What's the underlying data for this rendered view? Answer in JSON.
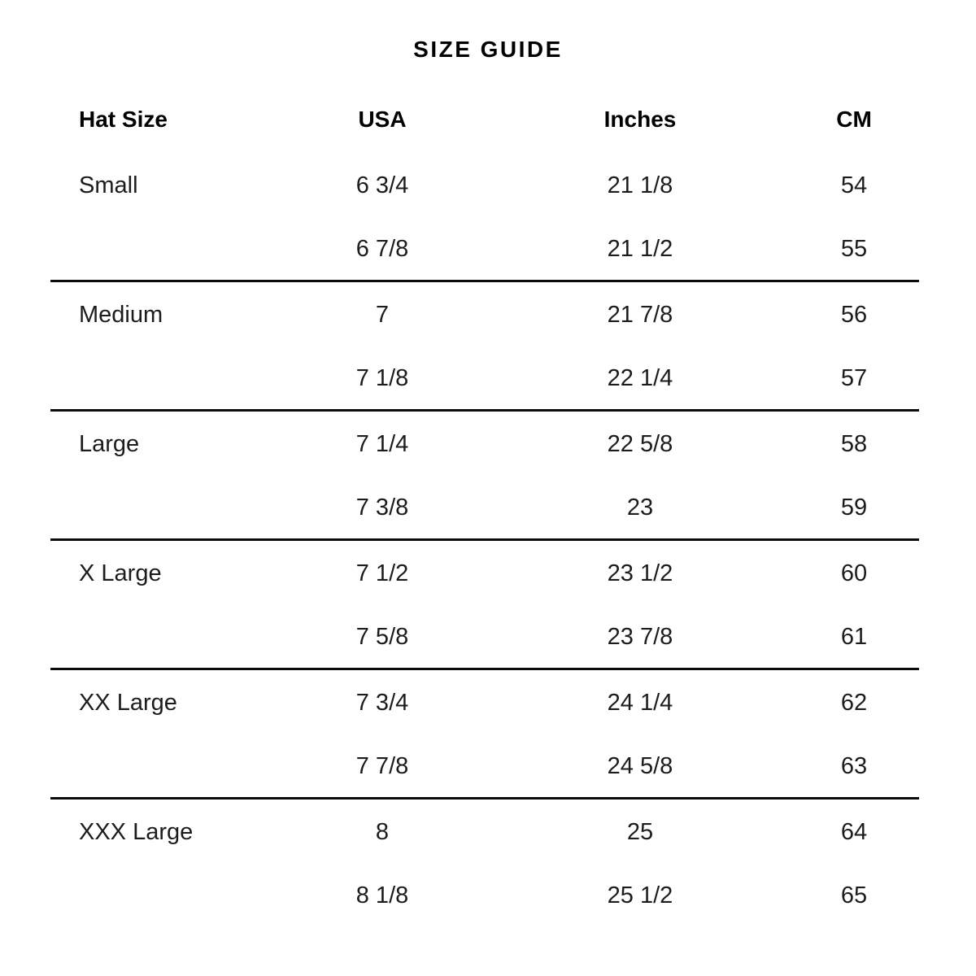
{
  "page": {
    "title": "SIZE GUIDE"
  },
  "colors": {
    "background": "#ffffff",
    "text": "#1c1c1c",
    "header_text": "#000000",
    "divider": "#0c0c0c"
  },
  "table": {
    "columns": [
      "Hat Size",
      "USA",
      "Inches",
      "CM"
    ],
    "groups": [
      {
        "rows": [
          {
            "hat_size": "Small",
            "usa": "6 3/4",
            "inches": "21 1/8",
            "cm": "54"
          },
          {
            "hat_size": "",
            "usa": "6 7/8",
            "inches": "21 1/2",
            "cm": "55"
          }
        ]
      },
      {
        "rows": [
          {
            "hat_size": "Medium",
            "usa": "7",
            "inches": "21 7/8",
            "cm": "56"
          },
          {
            "hat_size": "",
            "usa": "7 1/8",
            "inches": "22 1/4",
            "cm": "57"
          }
        ]
      },
      {
        "rows": [
          {
            "hat_size": "Large",
            "usa": "7 1/4",
            "inches": "22 5/8",
            "cm": "58"
          },
          {
            "hat_size": "",
            "usa": "7 3/8",
            "inches": "23",
            "cm": "59"
          }
        ]
      },
      {
        "rows": [
          {
            "hat_size": "X Large",
            "usa": "7 1/2",
            "inches": "23 1/2",
            "cm": "60"
          },
          {
            "hat_size": "",
            "usa": "7 5/8",
            "inches": "23 7/8",
            "cm": "61"
          }
        ]
      },
      {
        "rows": [
          {
            "hat_size": "XX Large",
            "usa": "7 3/4",
            "inches": "24 1/4",
            "cm": "62"
          },
          {
            "hat_size": "",
            "usa": "7 7/8",
            "inches": "24 5/8",
            "cm": "63"
          }
        ]
      },
      {
        "rows": [
          {
            "hat_size": "XXX Large",
            "usa": "8",
            "inches": "25",
            "cm": "64"
          },
          {
            "hat_size": "",
            "usa": "8 1/8",
            "inches": "25 1/2",
            "cm": "65"
          }
        ]
      }
    ]
  }
}
